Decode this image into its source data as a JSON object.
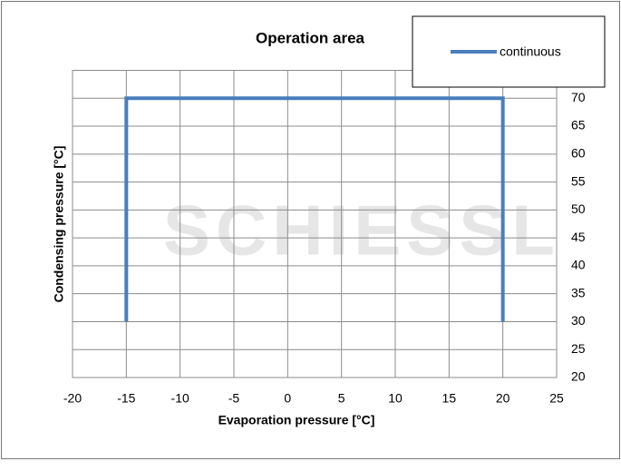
{
  "chart_data": {
    "type": "line",
    "title": "Operation area",
    "x_label": "Evaporation pressure [°C]",
    "y_label": "Condensing pressure [°C]",
    "watermark": "SCHIESSL",
    "x": [
      -15,
      -15,
      20,
      20
    ],
    "series": [
      {
        "name": "continuous",
        "color": "#4a7ebb",
        "values": [
          30,
          70,
          70,
          30
        ]
      }
    ],
    "xlim": [
      -20,
      25
    ],
    "xticks": [
      -20,
      -15,
      -10,
      -5,
      0,
      5,
      10,
      15,
      20,
      25
    ],
    "ylim": [
      20,
      75
    ],
    "yticks": [
      20,
      25,
      30,
      35,
      40,
      45,
      50,
      55,
      60,
      65,
      70
    ],
    "grid": true,
    "legend": "top-right"
  }
}
